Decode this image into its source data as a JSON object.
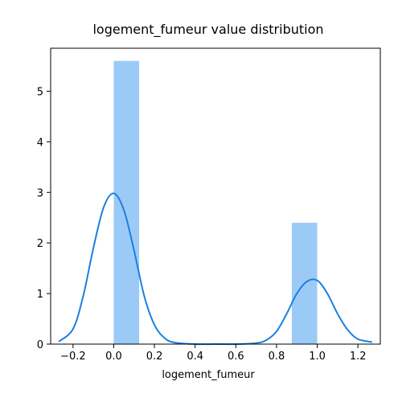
{
  "chart_data": {
    "type": "bar",
    "title": "logement_fumeur value distribution",
    "xlabel": "logement_fumeur",
    "ylabel": "",
    "xlim": [
      -0.31,
      1.31
    ],
    "ylim": [
      0,
      5.85
    ],
    "xticks": [
      -0.2,
      0.0,
      0.2,
      0.4,
      0.6,
      0.8,
      1.0,
      1.2
    ],
    "xtick_labels": [
      "−0.2",
      "0.0",
      "0.2",
      "0.4",
      "0.6",
      "0.8",
      "1.0",
      "1.2"
    ],
    "yticks": [
      0,
      1,
      2,
      3,
      4,
      5
    ],
    "ytick_labels": [
      "0",
      "1",
      "2",
      "3",
      "4",
      "5"
    ],
    "grid": false,
    "series": [
      {
        "kind": "histogram",
        "bins": [
          {
            "x0": 0.0,
            "x1": 0.125,
            "density": 5.6
          },
          {
            "x0": 0.875,
            "x1": 1.0,
            "density": 2.4
          }
        ],
        "color": "#9ccaf7"
      },
      {
        "kind": "kde",
        "color": "#1a80e0",
        "x": [
          -0.27,
          -0.2,
          -0.15,
          -0.1,
          -0.05,
          0.0,
          0.05,
          0.1,
          0.15,
          0.2,
          0.25,
          0.3,
          0.4,
          0.5,
          0.6,
          0.7,
          0.75,
          0.8,
          0.85,
          0.9,
          0.95,
          1.0,
          1.05,
          1.1,
          1.15,
          1.2,
          1.27
        ],
        "y": [
          0.05,
          0.3,
          0.95,
          1.9,
          2.7,
          2.98,
          2.65,
          1.85,
          0.95,
          0.38,
          0.12,
          0.03,
          0.0,
          0.0,
          0.0,
          0.02,
          0.08,
          0.25,
          0.6,
          1.0,
          1.24,
          1.26,
          1.0,
          0.6,
          0.28,
          0.1,
          0.04
        ]
      }
    ]
  }
}
